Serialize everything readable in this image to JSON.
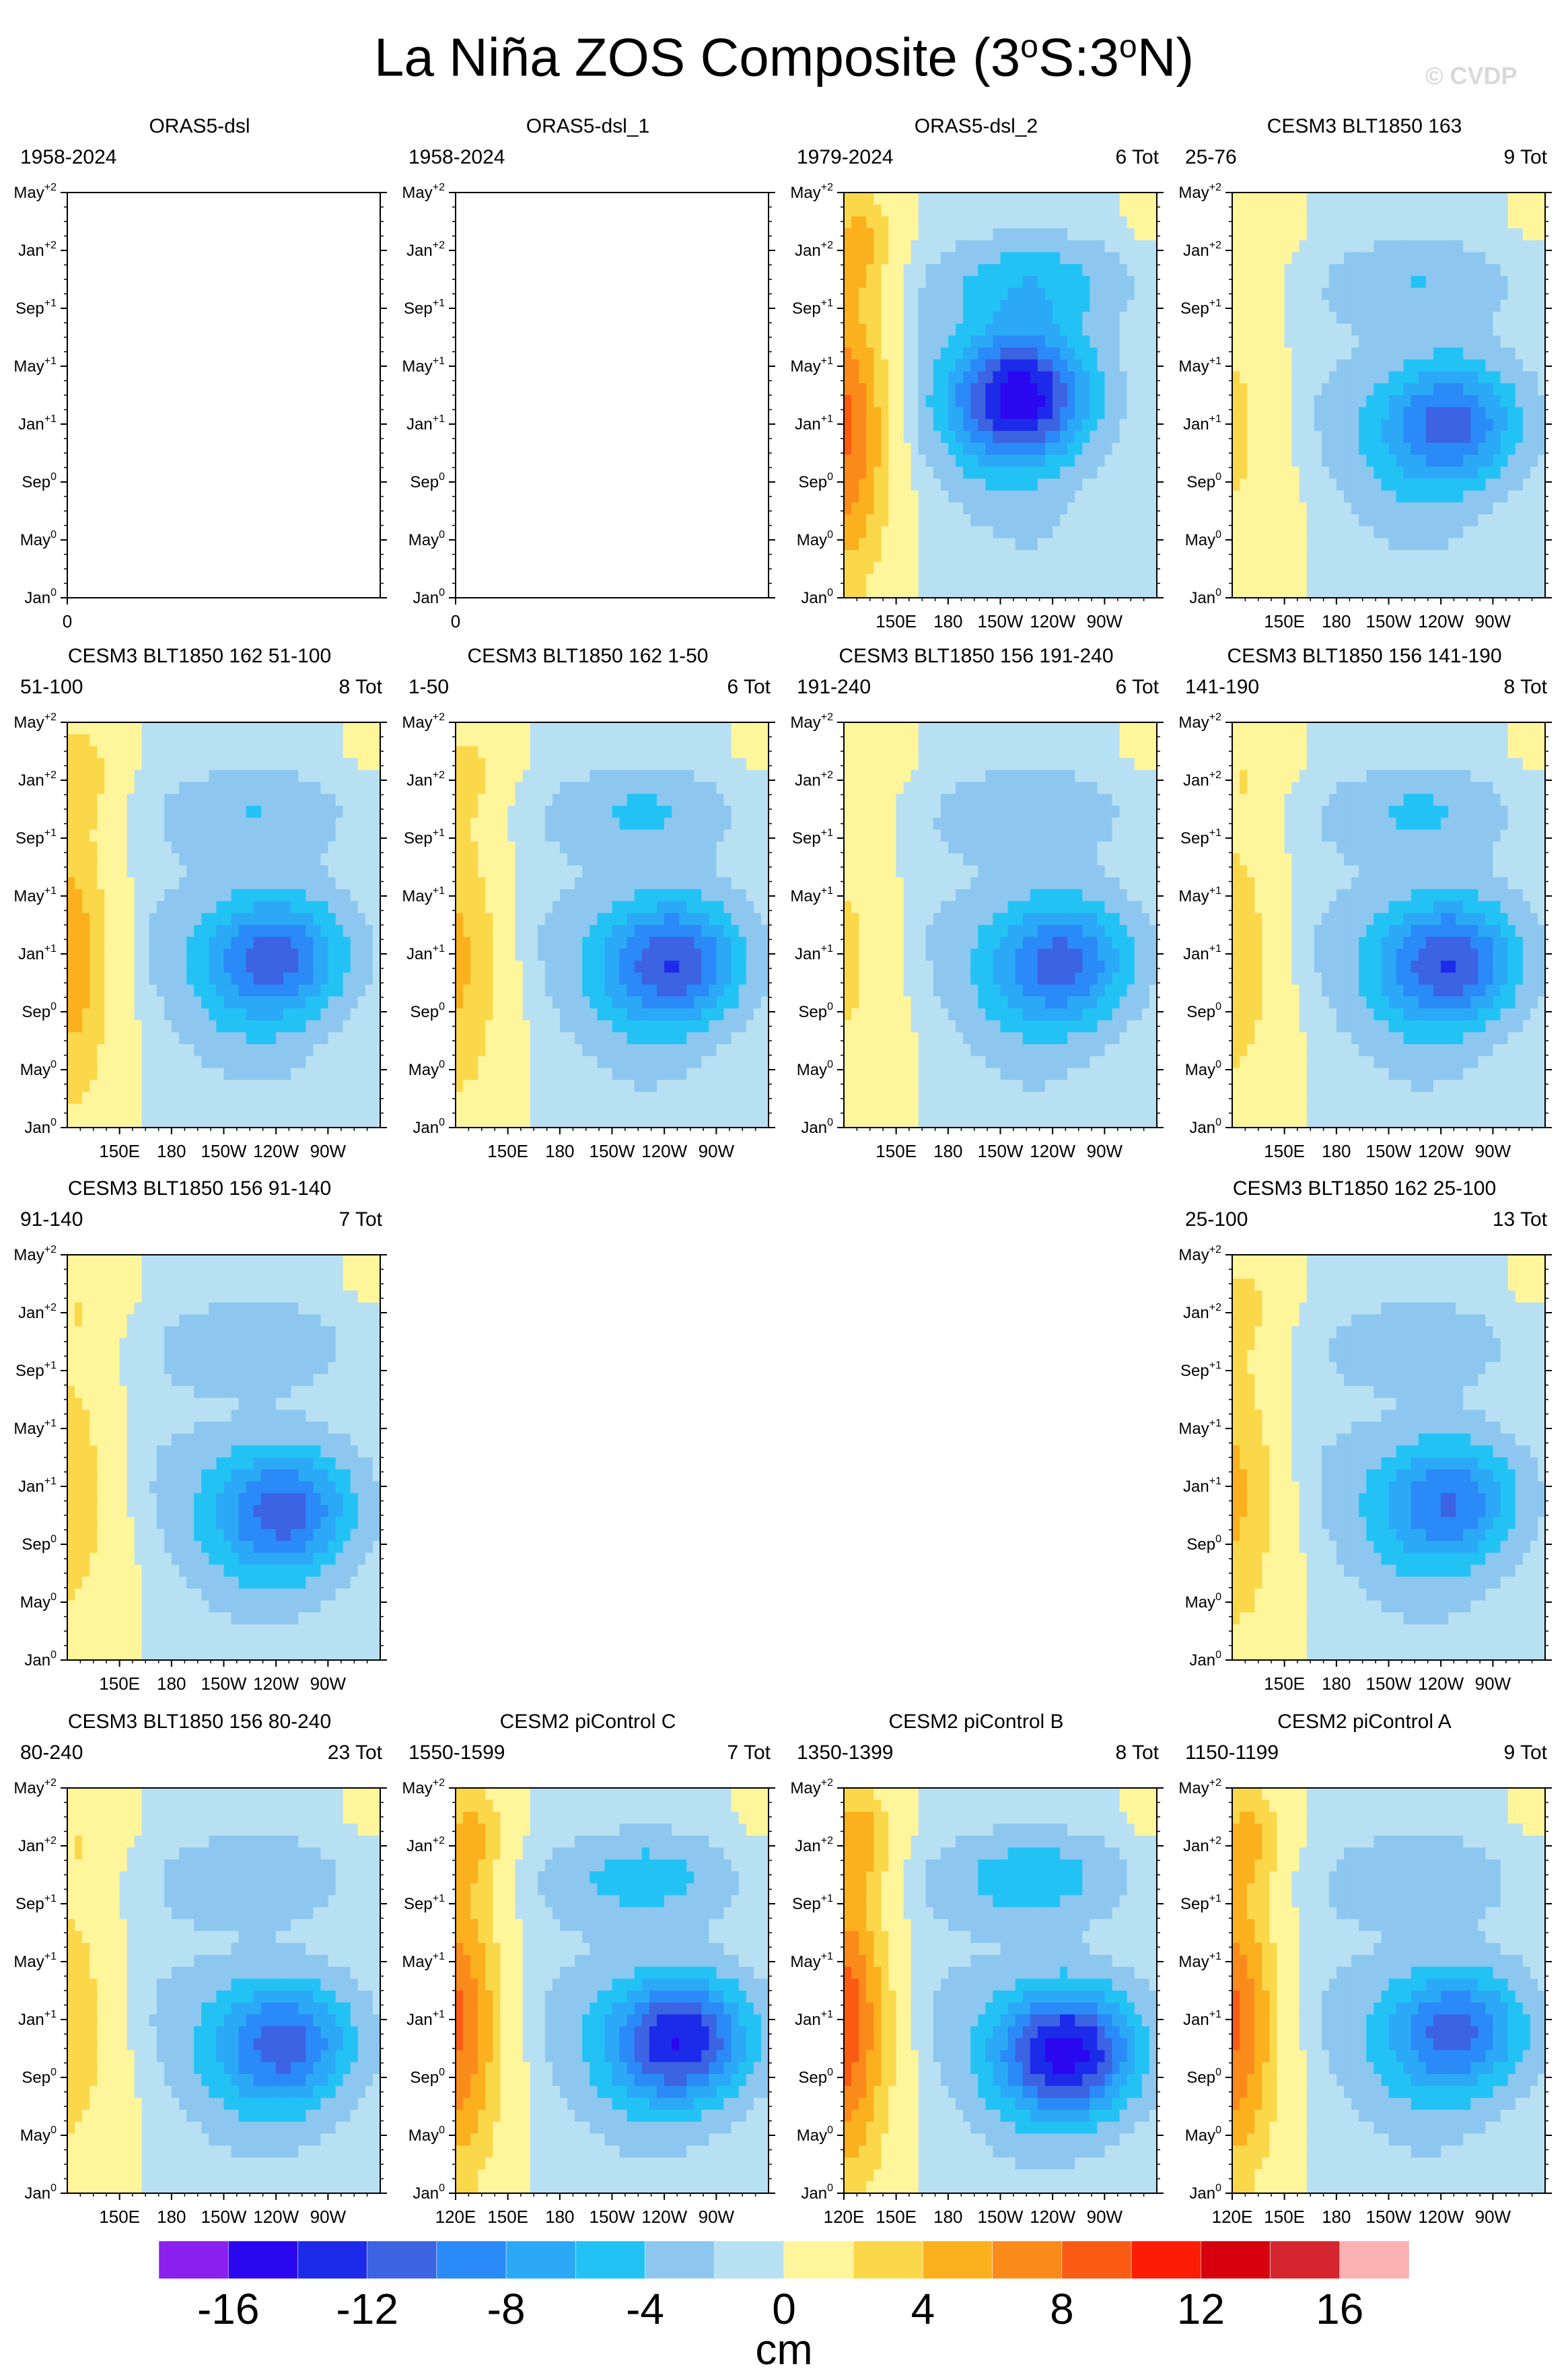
{
  "title": "La Niña ZOS Composite (3",
  "title_deg1": "o",
  "title_mid": "S:3",
  "title_deg2": "o",
  "title_end": "N)",
  "watermark": "© CVDP",
  "colors": {
    "levels": [
      "#8b1fee",
      "#2b07f0",
      "#1c2bea",
      "#3b63e2",
      "#2a8af7",
      "#2ba9f6",
      "#22c3f4",
      "#8dc7ef",
      "#b8e0f3",
      "#fff59b",
      "#fbd74a",
      "#fbb01d",
      "#fa8a1a",
      "#f95b12",
      "#fb1d06",
      "#d7000f",
      "#d5252e",
      "#fbb1b1"
    ],
    "frame": "#000000"
  },
  "yaxis_ticks": [
    {
      "base": "Jan",
      "sup": "0"
    },
    {
      "base": "May",
      "sup": "0"
    },
    {
      "base": "Sep",
      "sup": "0"
    },
    {
      "base": "Jan",
      "sup": "+1"
    },
    {
      "base": "May",
      "sup": "+1"
    },
    {
      "base": "Sep",
      "sup": "+1"
    },
    {
      "base": "Jan",
      "sup": "+2"
    },
    {
      "base": "May",
      "sup": "+2"
    }
  ],
  "chart_data": [
    {
      "type": "heatmap",
      "title": "ORAS5-dsl",
      "left_label": "1958-2024",
      "right_label": "",
      "empty": true,
      "xticks": [
        "0"
      ],
      "yrange": [
        "Jan0",
        "May+2"
      ]
    },
    {
      "type": "heatmap",
      "title": "ORAS5-dsl_1",
      "left_label": "1958-2024",
      "right_label": "",
      "empty": true,
      "xticks": [
        "0"
      ],
      "yrange": [
        "Jan0",
        "May+2"
      ]
    },
    {
      "type": "heatmap",
      "title": "ORAS5-dsl_2",
      "left_label": "1979-2024",
      "right_label": "6 Tot",
      "empty": false,
      "xticks": [
        "150E",
        "180",
        "150W",
        "120W",
        "90W"
      ],
      "warm_strength": 8,
      "cold_strength": -14,
      "cold_time": 0.5,
      "cold_lon": 0.57
    },
    {
      "type": "heatmap",
      "title": "CESM3 BLT1850 163",
      "left_label": "25-76",
      "right_label": "9 Tot",
      "empty": false,
      "xticks": [
        "150E",
        "180",
        "150W",
        "120W",
        "90W"
      ],
      "warm_strength": 2,
      "cold_strength": -10,
      "cold_time": 0.43,
      "cold_lon": 0.7
    },
    {
      "type": "heatmap",
      "title": "CESM3 BLT1850 162 51-100",
      "left_label": "51-100",
      "right_label": "8 Tot",
      "empty": false,
      "xticks": [
        "150E",
        "180",
        "150W",
        "120W",
        "90W"
      ],
      "warm_strength": 5,
      "cold_strength": -10,
      "cold_time": 0.42,
      "cold_lon": 0.67
    },
    {
      "type": "heatmap",
      "title": "CESM3 BLT1850 162 1-50",
      "left_label": "1-50",
      "right_label": "6 Tot",
      "empty": false,
      "xticks": [
        "150E",
        "180",
        "150W",
        "120W",
        "90W"
      ],
      "warm_strength": 4,
      "cold_strength": -11,
      "cold_time": 0.41,
      "cold_lon": 0.7
    },
    {
      "type": "heatmap",
      "title": "CESM3 BLT1850 156 191-240",
      "left_label": "191-240",
      "right_label": "6 Tot",
      "empty": false,
      "xticks": [
        "150E",
        "180",
        "150W",
        "120W",
        "90W"
      ],
      "warm_strength": 2,
      "cold_strength": -10,
      "cold_time": 0.41,
      "cold_lon": 0.7
    },
    {
      "type": "heatmap",
      "title": "CESM3 BLT1850 156 141-190",
      "left_label": "141-190",
      "right_label": "8 Tot",
      "empty": false,
      "xticks": [
        "150E",
        "180",
        "150W",
        "120W",
        "90W"
      ],
      "warm_strength": 3,
      "cold_strength": -11,
      "cold_time": 0.41,
      "cold_lon": 0.7
    },
    {
      "type": "heatmap",
      "title": "CESM3 BLT1850 156 91-140",
      "left_label": "91-140",
      "right_label": "7 Tot",
      "empty": false,
      "xticks": [
        "150E",
        "180",
        "150W",
        "120W",
        "90W"
      ],
      "warm_strength": 3,
      "cold_strength": -10,
      "cold_time": 0.37,
      "cold_lon": 0.7
    },
    {
      "type": "heatmap",
      "title": "CESM3 BLT1850 162 25-100",
      "left_label": "25-100",
      "right_label": "13 Tot",
      "empty": false,
      "xticks": [
        "150E",
        "180",
        "150W",
        "120W",
        "90W"
      ],
      "warm_strength": 4,
      "cold_strength": -9,
      "cold_time": 0.39,
      "cold_lon": 0.7
    },
    {
      "type": "heatmap",
      "title": "CESM3 BLT1850 156 80-240",
      "left_label": "80-240",
      "right_label": "23 Tot",
      "empty": false,
      "xticks": [
        "150E",
        "180",
        "150W",
        "120W",
        "90W"
      ],
      "warm_strength": 3,
      "cold_strength": -10,
      "cold_time": 0.37,
      "cold_lon": 0.7
    },
    {
      "type": "heatmap",
      "title": "CESM2 piControl C",
      "left_label": "1550-1599",
      "right_label": "7 Tot",
      "empty": false,
      "xticks": [
        "120E",
        "150E",
        "180",
        "150W",
        "120W",
        "90W"
      ],
      "warm_strength": 8,
      "cold_strength": -13,
      "cold_time": 0.38,
      "cold_lon": 0.72
    },
    {
      "type": "heatmap",
      "title": "CESM2 piControl B",
      "left_label": "1350-1399",
      "right_label": "8 Tot",
      "empty": false,
      "xticks": [
        "120E",
        "150E",
        "180",
        "150W",
        "120W",
        "90W"
      ],
      "warm_strength": 9,
      "cold_strength": -14,
      "cold_time": 0.35,
      "cold_lon": 0.72
    },
    {
      "type": "heatmap",
      "title": "CESM2 piControl A",
      "left_label": "1150-1199",
      "right_label": "9 Tot",
      "empty": false,
      "xticks": [
        "120E",
        "150E",
        "180",
        "150W",
        "120W",
        "90W"
      ],
      "warm_strength": 8,
      "cold_strength": -10,
      "cold_time": 0.4,
      "cold_lon": 0.72
    }
  ],
  "colorbar": {
    "labels": [
      "-16",
      "-12",
      "-8",
      "-4",
      "0",
      "4",
      "8",
      "12",
      "16"
    ],
    "units": "cm",
    "min": -18,
    "max": 18,
    "step": 2
  }
}
